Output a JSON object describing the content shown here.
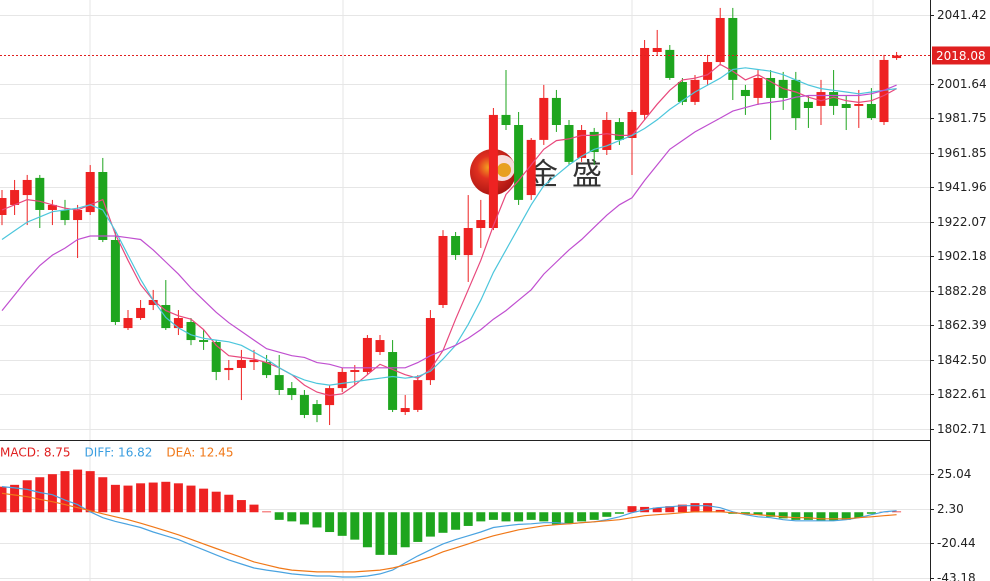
{
  "chart_data": [
    {
      "type": "candlestick",
      "up_color": "#ee2222",
      "down_color": "#1ea51e",
      "open": [
        1926.1,
        1931.9,
        1937.6,
        1947.5,
        1929.0,
        1929.0,
        1923.2,
        1927.8,
        1950.9,
        1911.7,
        1860.9,
        1866.7,
        1874.2,
        1874.2,
        1860.9,
        1864.4,
        1854.0,
        1852.9,
        1836.7,
        1837.9,
        1841.3,
        1841.3,
        1833.8,
        1826.3,
        1822.3,
        1817.1,
        1816.5,
        1826.3,
        1835.6,
        1835.6,
        1847.1,
        1847.1,
        1812.5,
        1813.7,
        1830.9,
        1874.2,
        1914.0,
        1903.0,
        1918.6,
        1918.6,
        1983.8,
        1978.0,
        1937.6,
        1969.4,
        1993.6,
        1978.0,
        1959.0,
        1974.0,
        1963.6,
        1979.7,
        1970.5,
        1983.8,
        2020.1,
        2021.3,
        2002.8,
        1991.3,
        2004.0,
        2014.3,
        2039.7,
        1998.2,
        1993.6,
        2005.1,
        2004.0,
        2004.0,
        1991.3,
        1989.0,
        1997.0,
        1990.1,
        1989.0,
        1990.1,
        1979.7,
        2016.6
      ],
      "high": [
        1940.5,
        1946.3,
        1949.2,
        1949.2,
        1934.8,
        1934.8,
        1931.9,
        1954.9,
        1959.0,
        1916.3,
        1871.3,
        1877.1,
        1882.9,
        1888.6,
        1871.3,
        1866.7,
        1859.8,
        1854.0,
        1842.5,
        1848.3,
        1848.3,
        1845.4,
        1845.4,
        1829.8,
        1825.2,
        1819.4,
        1828.1,
        1837.9,
        1839.6,
        1856.9,
        1856.9,
        1854.0,
        1822.3,
        1833.8,
        1871.3,
        1917.4,
        1916.3,
        1937.6,
        1934.8,
        1987.8,
        2009.7,
        1985.5,
        1970.5,
        2001.1,
        1998.2,
        1980.9,
        1978.0,
        1976.3,
        1985.5,
        1982.0,
        1986.7,
        2027.0,
        2032.8,
        2024.1,
        2005.1,
        2006.8,
        2018.4,
        2045.5,
        2045.5,
        2001.1,
        2009.7,
        2009.7,
        2008.6,
        2008.6,
        1995.3,
        2004.0,
        2009.7,
        1995.3,
        1998.2,
        1999.3,
        2018.4,
        2020.1
      ],
      "low": [
        1920.3,
        1926.1,
        1920.3,
        1918.6,
        1920.3,
        1920.3,
        1901.3,
        1926.1,
        1910.5,
        1862.7,
        1859.8,
        1865.6,
        1871.3,
        1859.8,
        1856.9,
        1851.1,
        1848.3,
        1830.9,
        1830.9,
        1819.4,
        1836.7,
        1832.1,
        1822.3,
        1819.4,
        1809.0,
        1806.7,
        1805.0,
        1824.0,
        1828.1,
        1833.8,
        1845.4,
        1812.5,
        1810.8,
        1812.5,
        1828.1,
        1872.5,
        1900.2,
        1887.5,
        1907.1,
        1917.4,
        1975.1,
        1931.9,
        1934.8,
        1966.5,
        1974.0,
        1954.9,
        1956.7,
        1954.9,
        1960.7,
        1966.5,
        1949.2,
        1980.9,
        2018.4,
        2004.0,
        1989.5,
        1989.5,
        2001.1,
        2012.6,
        1992.4,
        1983.8,
        1989.5,
        1969.4,
        1986.7,
        1975.1,
        1976.3,
        1978.0,
        1983.8,
        1975.1,
        1976.3,
        1980.9,
        1978.0,
        2015.5
      ],
      "close": [
        1935.9,
        1940.5,
        1946.3,
        1929.0,
        1931.9,
        1923.2,
        1929.0,
        1950.9,
        1911.7,
        1864.4,
        1866.7,
        1872.5,
        1877.1,
        1860.9,
        1866.7,
        1854.0,
        1852.9,
        1835.6,
        1837.9,
        1842.5,
        1842.5,
        1833.8,
        1825.2,
        1822.3,
        1810.8,
        1810.8,
        1826.3,
        1835.6,
        1836.7,
        1855.2,
        1854.0,
        1813.7,
        1814.8,
        1830.9,
        1866.7,
        1914.0,
        1903.0,
        1918.6,
        1923.2,
        1983.8,
        1978.0,
        1934.8,
        1969.4,
        1993.6,
        1978.0,
        1956.7,
        1975.1,
        1962.4,
        1980.9,
        1969.4,
        1985.5,
        2022.4,
        2022.4,
        2005.1,
        1991.3,
        2004.0,
        2014.3,
        2039.7,
        2004.0,
        1994.7,
        2005.1,
        1993.6,
        1993.6,
        1982.0,
        1987.8,
        1997.0,
        1989.0,
        1987.8,
        1990.1,
        1982.0,
        2015.5,
        2018.08
      ],
      "lines": [
        {
          "color": "#e8487c",
          "values": [
            1929,
            1932,
            1935,
            1934,
            1932,
            1930,
            1929,
            1932,
            1935,
            1915,
            1900,
            1886,
            1877,
            1871,
            1868,
            1866,
            1860,
            1851,
            1845,
            1844,
            1843,
            1841,
            1838,
            1834,
            1828,
            1824,
            1822,
            1823,
            1828,
            1834,
            1840,
            1837,
            1834,
            1832,
            1837,
            1848,
            1866,
            1883,
            1900,
            1920,
            1938,
            1946,
            1955,
            1964,
            1969,
            1970,
            1972,
            1972,
            1973,
            1972,
            1972,
            1981,
            1990,
            1998,
            2004,
            2005,
            2007,
            2013,
            2009,
            2004,
            2007,
            2003,
            1999,
            1997,
            1994,
            1992,
            1994,
            1992,
            1991,
            1992,
            1995,
            1999
          ]
        },
        {
          "color": "#4cc6dc",
          "values": [
            1912,
            1917,
            1922,
            1925,
            1928,
            1929,
            1930,
            1932,
            1929,
            1917,
            1903,
            1889,
            1877,
            1867,
            1861,
            1857,
            1855,
            1854,
            1853,
            1851,
            1847,
            1843,
            1838,
            1834,
            1831,
            1829,
            1828,
            1829,
            1830,
            1831,
            1832,
            1833,
            1832,
            1833,
            1836,
            1843,
            1851,
            1863,
            1877,
            1893,
            1906,
            1919,
            1932,
            1943,
            1949,
            1955,
            1960,
            1964,
            1966,
            1969,
            1972,
            1976,
            1981,
            1987,
            1992,
            1997,
            2001,
            2005,
            2010,
            2011,
            2010,
            2009,
            2007,
            2004,
            2001,
            1999,
            1998,
            1997,
            1996,
            1997,
            1998,
            1999
          ]
        },
        {
          "color": "#c04fd0",
          "values": [
            1871,
            1880,
            1889,
            1897,
            1903,
            1907,
            1912,
            1914,
            1914,
            1914,
            1913,
            1912,
            1906,
            1899,
            1892,
            1884,
            1877,
            1870,
            1864,
            1859,
            1854,
            1849,
            1847,
            1845,
            1844,
            1841,
            1840,
            1838,
            1838,
            1838,
            1838,
            1838,
            1838,
            1841,
            1845,
            1848,
            1851,
            1855,
            1860,
            1866,
            1871,
            1877,
            1883,
            1892,
            1899,
            1906,
            1912,
            1919,
            1926,
            1932,
            1936,
            1946,
            1955,
            1964,
            1969,
            1974,
            1978,
            1982,
            1986,
            1988,
            1990,
            1991,
            1992,
            1994,
            1995,
            1995,
            1995,
            1995,
            1995,
            1996,
            1998,
            2001
          ]
        }
      ],
      "last_price": 2018.08,
      "last_color": "#e02020",
      "ylim": [
        1796.37,
        2050.07
      ],
      "yticks": [
        2041.42,
        2001.64,
        1981.75,
        1961.85,
        1941.96,
        1922.07,
        1902.18,
        1882.28,
        1862.39,
        {
          "value": 1842.5,
          "label": "1842.50"
        },
        1822.61,
        1802.71
      ],
      "grid": true,
      "watermark": "金盛"
    },
    {
      "type": "macd",
      "header": [
        {
          "text": "MACD: 8.75",
          "color": "#e02020"
        },
        {
          "text": "DIFF: 16.82",
          "color": "#3a9ee0"
        },
        {
          "text": "DEA: 12.45",
          "color": "#f07818"
        }
      ],
      "up_color": "#ee2222",
      "down_color": "#1ea51e",
      "bars": [
        16.8,
        18,
        21,
        23,
        25,
        27,
        28,
        27,
        23,
        18,
        17.5,
        19,
        19.5,
        20,
        19,
        17.5,
        15.5,
        13.5,
        11.5,
        8,
        5,
        0.5,
        -5,
        -6,
        -8,
        -10,
        -13,
        -15.5,
        -18,
        -23,
        -28,
        -28,
        -23,
        -19.5,
        -16,
        -13.5,
        -11.5,
        -9,
        -6,
        -5,
        -6,
        -6,
        -5,
        -6,
        -8,
        -7.5,
        -6,
        -5,
        -3,
        -1,
        4,
        3.5,
        3,
        4,
        5,
        6,
        6,
        1.5,
        -1,
        -1,
        -1.5,
        -3,
        -4,
        -5,
        -5,
        -5.5,
        -5.5,
        -5,
        -3.5,
        -1,
        0.3,
        0.5
      ],
      "lines": [
        {
          "color": "#4aa3e0",
          "values": [
            16.82,
            16,
            15,
            13,
            11.5,
            8,
            5,
            0.3,
            -3.6,
            -6,
            -8,
            -10,
            -13,
            -15.5,
            -18,
            -21.4,
            -24.7,
            -28,
            -31.3,
            -34,
            -36.6,
            -38,
            -39.2,
            -40.5,
            -41.2,
            -41.9,
            -41.9,
            -42.5,
            -42.5,
            -41.9,
            -40.5,
            -38,
            -33.3,
            -28.7,
            -24.7,
            -20.8,
            -18,
            -15.5,
            -13,
            -10,
            -8.9,
            -8,
            -7.6,
            -6.9,
            -6.9,
            -7.6,
            -6.9,
            -6.3,
            -4.9,
            -3,
            -0.3,
            1.6,
            3,
            3.6,
            4.3,
            4.3,
            4.3,
            3,
            0.3,
            -1.6,
            -3,
            -3.6,
            -4.9,
            -5.6,
            -5.6,
            -5.6,
            -5.6,
            -4.9,
            -3.6,
            -1.6,
            0.3,
            1
          ]
        },
        {
          "color": "#f07818",
          "values": [
            12.45,
            11.3,
            10.2,
            8.5,
            6.9,
            5,
            3,
            1,
            -1,
            -3,
            -4.9,
            -7.2,
            -9.6,
            -12.2,
            -14.8,
            -17.8,
            -20.8,
            -23.8,
            -26.7,
            -29.6,
            -32.6,
            -34.6,
            -36.6,
            -38,
            -38.6,
            -39.2,
            -39.2,
            -39.2,
            -39.2,
            -38.6,
            -38,
            -36.6,
            -34.6,
            -32,
            -29.3,
            -26,
            -23.4,
            -20.8,
            -18,
            -15.5,
            -13.5,
            -11.5,
            -10.2,
            -8.9,
            -8.2,
            -7.6,
            -6.9,
            -6.3,
            -5.6,
            -4.9,
            -3.6,
            -2.3,
            -1.6,
            -1,
            -0.3,
            0.3,
            0.3,
            0.3,
            -0.3,
            -1,
            -1.6,
            -2.3,
            -3,
            -3.6,
            -3.6,
            -4.3,
            -4.3,
            -4.3,
            -3.6,
            -3,
            -2.3,
            -1.6
          ]
        }
      ],
      "ylim": [
        -45.16,
        47.45
      ],
      "yticks": [
        25.04,
        {
          "value": 2.3,
          "label": "2.30"
        },
        -20.44,
        -43.18
      ],
      "grid": true
    }
  ]
}
